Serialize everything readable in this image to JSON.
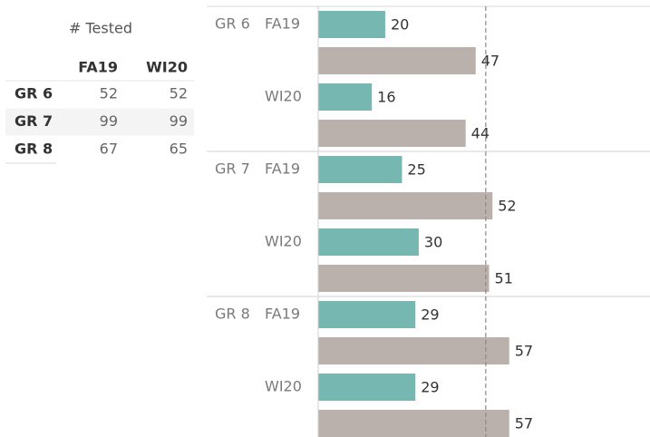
{
  "table": {
    "title": "# Tested",
    "columns": [
      "FA19",
      "WI20"
    ],
    "rows": [
      {
        "label": "GR 6",
        "values": [
          52,
          52
        ]
      },
      {
        "label": "GR 7",
        "values": [
          99,
          99
        ]
      },
      {
        "label": "GR 8",
        "values": [
          67,
          65
        ]
      }
    ]
  },
  "chart_data": {
    "type": "bar",
    "orientation": "horizontal",
    "groups": [
      "GR 6",
      "GR 7",
      "GR 8"
    ],
    "terms": [
      "FA19",
      "WI20"
    ],
    "series": [
      {
        "color": "#76b7b2",
        "values": [
          20,
          16,
          25,
          30,
          29,
          29
        ]
      },
      {
        "color": "#bab0ac",
        "values": [
          47,
          44,
          52,
          51,
          57,
          57
        ]
      }
    ],
    "xlim": [
      0,
      99
    ],
    "reference_line": 50
  }
}
